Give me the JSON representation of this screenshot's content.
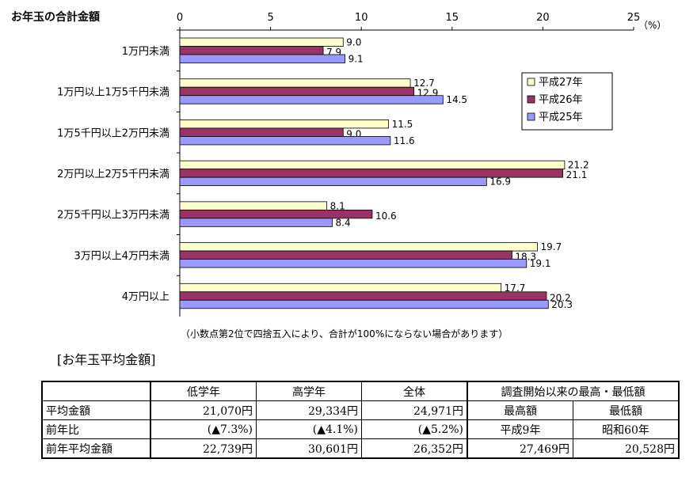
{
  "chart_data": {
    "type": "bar",
    "title": "お年玉の合計金額",
    "unit_label": "（%）",
    "xlim": [
      0,
      25
    ],
    "ticks": [
      0,
      5,
      10,
      15,
      20,
      25
    ],
    "categories": [
      "1万円未満",
      "1万円以上1万5千円未満",
      "1万5千円以上2万円未満",
      "2万円以上2万5千円未満",
      "2万5千円以上3万円未満",
      "3万円以上4万円未満",
      "4万円以上"
    ],
    "series": [
      {
        "name": "平成27年",
        "color": "#ffffcc",
        "values": [
          9.0,
          12.7,
          11.5,
          21.2,
          8.1,
          19.7,
          17.7
        ]
      },
      {
        "name": "平成26年",
        "color": "#993366",
        "values": [
          7.9,
          12.9,
          9.0,
          21.1,
          10.6,
          18.3,
          20.2
        ]
      },
      {
        "name": "平成25年",
        "color": "#9999ff",
        "values": [
          9.1,
          14.5,
          11.6,
          16.9,
          8.4,
          19.1,
          20.3
        ]
      }
    ],
    "value_labels": [
      [
        "9.0",
        "12.7",
        "11.5",
        "21.2",
        "8.1",
        "19.7",
        "17.7"
      ],
      [
        "7.9",
        "12.9",
        "9.0",
        "21.1",
        "10.6",
        "18.3",
        "20.2"
      ],
      [
        "9.1",
        "14.5",
        "11.6",
        "16.9",
        "8.4",
        "19.1",
        "20.3"
      ]
    ],
    "legend_position": "top-right",
    "grid": false
  },
  "note": "（小数点第2位で四捨五入により、合計が100%にならない場合があります）",
  "table_title": "[お年玉平均金額]",
  "table": {
    "header": [
      "",
      "低学年",
      "高学年",
      "全体",
      "調査開始以来の最高・最低額"
    ],
    "row1": {
      "label": "平均金額",
      "v1": "21,070円",
      "v2": "29,334円",
      "v3": "24,971円",
      "hi": "最高額",
      "lo": "最低額"
    },
    "row2": {
      "label": "前年比",
      "v1": "(▲7.3%)",
      "v2": "(▲4.1%)",
      "v3": "(▲5.2%)",
      "hi": "平成9年",
      "lo": "昭和60年"
    },
    "row3": {
      "label": "前年平均金額",
      "v1": "22,739円",
      "v2": "30,601円",
      "v3": "26,352円",
      "hi": "27,469円",
      "lo": "20,528円"
    }
  }
}
